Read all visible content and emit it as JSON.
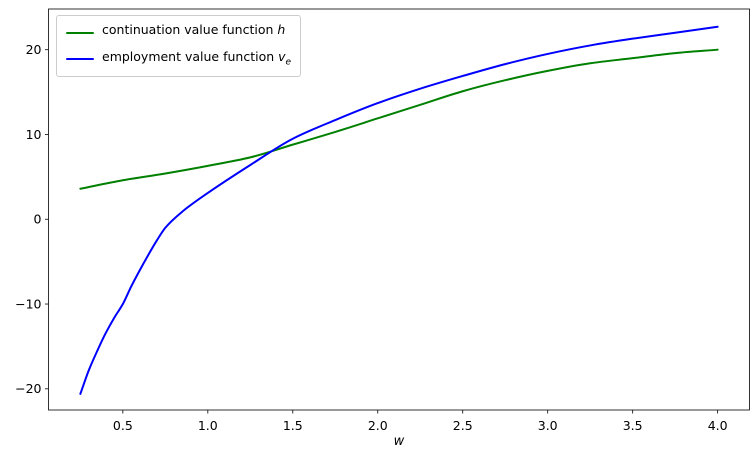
{
  "chart_data": {
    "type": "line",
    "title": "",
    "xlabel": "w",
    "ylabel": "",
    "xlim": [
      0.0625,
      4.1875
    ],
    "ylim": [
      -22.5,
      24.8
    ],
    "grid": false,
    "background": "#ffffff",
    "xticks": {
      "values": [
        0.5,
        1.0,
        1.5,
        2.0,
        2.5,
        3.0,
        3.5,
        4.0
      ],
      "labels": [
        "0.5",
        "1.0",
        "1.5",
        "2.0",
        "2.5",
        "3.0",
        "3.5",
        "4.0"
      ]
    },
    "yticks": {
      "values": [
        -20,
        -10,
        0,
        10,
        20
      ],
      "labels": [
        "−20",
        "−10",
        "0",
        "10",
        "20"
      ]
    },
    "legend": {
      "position": "upper-left",
      "frame": true,
      "entries": [
        {
          "label_text": "continuation value function ",
          "label_math": "h",
          "label_sub": "",
          "series": "h"
        },
        {
          "label_text": "employment value function ",
          "label_math": "v",
          "label_sub": "e",
          "series": "ve"
        }
      ]
    },
    "series": [
      {
        "id": "h",
        "name": "continuation value function h",
        "color": "#008000",
        "line_width": 2,
        "x": [
          0.25,
          0.5,
          0.75,
          1.0,
          1.25,
          1.5,
          1.75,
          2.0,
          2.25,
          2.5,
          2.75,
          3.0,
          3.25,
          3.5,
          3.75,
          4.0
        ],
        "y": [
          3.6,
          4.6,
          5.4,
          6.3,
          7.3,
          8.8,
          10.3,
          11.9,
          13.5,
          15.1,
          16.4,
          17.5,
          18.4,
          19.0,
          19.6,
          20.0
        ]
      },
      {
        "id": "ve",
        "name": "employment value function v_e",
        "color": "#0000ff",
        "line_width": 2,
        "x": [
          0.25,
          0.3,
          0.35,
          0.4,
          0.45,
          0.5,
          0.55,
          0.6,
          0.65,
          0.7,
          0.75,
          0.85,
          1.0,
          1.25,
          1.5,
          1.75,
          2.0,
          2.25,
          2.5,
          2.75,
          3.0,
          3.25,
          3.5,
          3.75,
          4.0
        ],
        "y": [
          -20.6,
          -17.8,
          -15.5,
          -13.4,
          -11.6,
          -10.0,
          -7.9,
          -6.0,
          -4.2,
          -2.5,
          -1.0,
          0.9,
          3.1,
          6.4,
          9.5,
          11.7,
          13.7,
          15.4,
          16.9,
          18.3,
          19.5,
          20.5,
          21.3,
          22.0,
          22.7
        ]
      }
    ]
  }
}
